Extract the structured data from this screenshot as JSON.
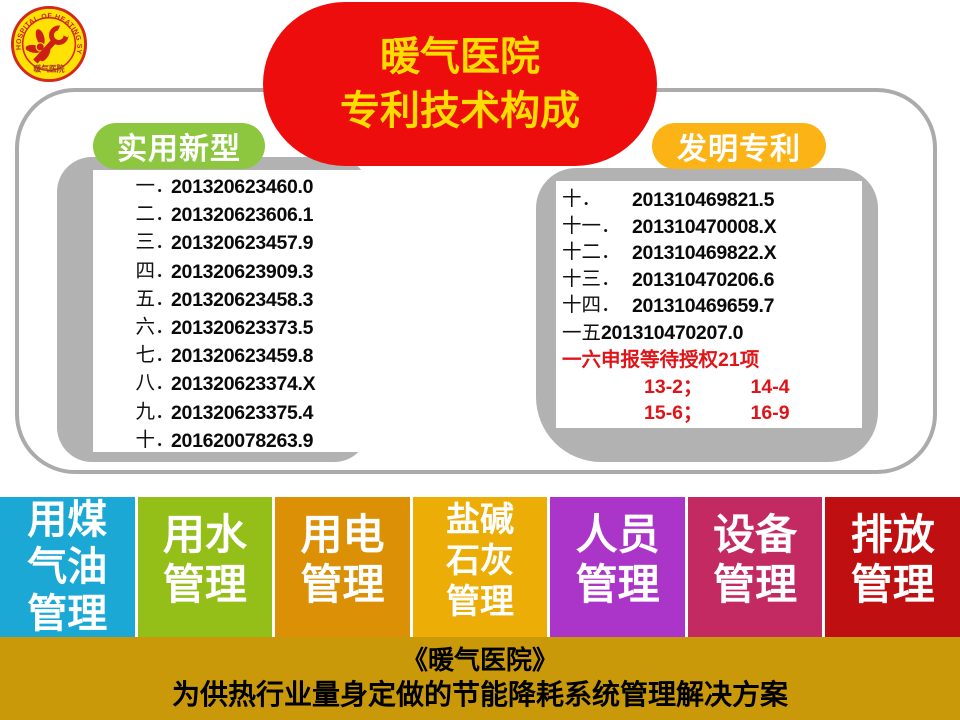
{
  "logo": {
    "ring_text": "HOSPITAL OF HEATING SYSTEM",
    "bottom_text": "暖气医院",
    "ring_color": "#d3281d",
    "fill_color": "#ffe104",
    "icon": "fan-and-wrench"
  },
  "title": {
    "line1": "暖气医院",
    "line2": "专利技术构成",
    "bg": "#ee0d0d",
    "color": "#ffdc00"
  },
  "left_panel": {
    "label": "实用新型",
    "label_bg": "#8dc63f",
    "separator": "．",
    "items": [
      {
        "index": "一",
        "number": "201320623460.0"
      },
      {
        "index": "二",
        "number": "201320623606.1"
      },
      {
        "index": "三",
        "number": "201320623457.9"
      },
      {
        "index": "四",
        "number": "201320623909.3"
      },
      {
        "index": "五",
        "number": "201320623458.3"
      },
      {
        "index": "六",
        "number": "201320623373.5"
      },
      {
        "index": "七",
        "number": "201320623459.8"
      },
      {
        "index": "八",
        "number": "201320623374.X"
      },
      {
        "index": "九",
        "number": "201320623375.4"
      },
      {
        "index": "十",
        "number": "201620078263.9"
      }
    ]
  },
  "right_panel": {
    "label": "发明专利",
    "label_bg": "#fbb316",
    "items": [
      {
        "label": "十．",
        "value": "201310469821.5",
        "red": false
      },
      {
        "label": "十一．",
        "value": "201310470008.X",
        "red": false
      },
      {
        "label": "十二．",
        "value": "201310469822.X",
        "red": false
      },
      {
        "label": "十三．",
        "value": "201310470206.6",
        "red": false
      },
      {
        "label": "十四．",
        "value": "201310469659.7",
        "red": false
      },
      {
        "label": "一五",
        "value": "201310470207.0",
        "red": false,
        "inline": true
      },
      {
        "text": "一六申报等待授权21项",
        "red": true
      },
      {
        "pair": [
          "13-2；",
          "14-4"
        ],
        "red": true
      },
      {
        "pair": [
          "15-6；",
          "16-9"
        ],
        "red": true
      }
    ],
    "red_color": "#e01418"
  },
  "blocks": [
    {
      "lines": [
        "用煤",
        "气油",
        "管理"
      ],
      "bg": "#1ba8d5"
    },
    {
      "lines": [
        "用水",
        "管理"
      ],
      "bg": "#94be18"
    },
    {
      "lines": [
        "用电",
        "管理"
      ],
      "bg": "#db9005"
    },
    {
      "lines": [
        "盐碱",
        "石灰",
        "管理"
      ],
      "bg": "#ebad06"
    },
    {
      "lines": [
        "人员",
        "管理"
      ],
      "bg": "#ac35c9"
    },
    {
      "lines": [
        "设备",
        "管理"
      ],
      "bg": "#c42a62"
    },
    {
      "lines": [
        "排放",
        "管理"
      ],
      "bg": "#c00f10"
    }
  ],
  "footer": {
    "line1": "《暖气医院》",
    "line2": "为供热行业量身定做的节能降耗系统管理解决方案",
    "bg": "#c9990a"
  }
}
